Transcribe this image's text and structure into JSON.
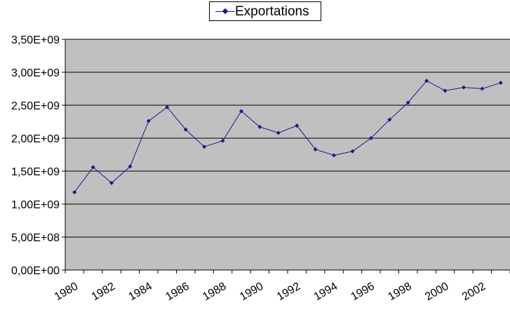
{
  "chart_data": {
    "type": "line",
    "x": [
      1980,
      1981,
      1982,
      1983,
      1984,
      1985,
      1986,
      1987,
      1988,
      1989,
      1990,
      1991,
      1992,
      1993,
      1994,
      1995,
      1996,
      1997,
      1998,
      1999,
      2000,
      2001,
      2002,
      2003
    ],
    "x_tick_labels": [
      "1980",
      "1982",
      "1984",
      "1986",
      "1988",
      "1990",
      "1992",
      "1994",
      "1996",
      "1998",
      "2000",
      "2002"
    ],
    "y_tick_labels": [
      "0,00E+00",
      "5,00E+08",
      "1,00E+09",
      "1,50E+09",
      "2,00E+09",
      "2,50E+09",
      "3,00E+09",
      "3,50E+09"
    ],
    "y_ticks": [
      0,
      500000000,
      1000000000,
      1500000000,
      2000000000,
      2500000000,
      3000000000,
      3500000000
    ],
    "ylim": [
      0,
      3500000000
    ],
    "series": [
      {
        "name": "Exportations",
        "values": [
          1180000000,
          1560000000,
          1320000000,
          1570000000,
          2260000000,
          2470000000,
          2130000000,
          1870000000,
          1960000000,
          2410000000,
          2170000000,
          2080000000,
          2190000000,
          1830000000,
          1740000000,
          1800000000,
          2000000000,
          2280000000,
          2540000000,
          2870000000,
          2720000000,
          2770000000,
          2750000000,
          2840000000
        ]
      }
    ],
    "title": "",
    "xlabel": "",
    "ylabel": "",
    "grid": true,
    "legend": "top",
    "colors": {
      "plot_bg": "#c0c0c0",
      "line": "#1a1a8c",
      "grid": "#000000"
    }
  }
}
